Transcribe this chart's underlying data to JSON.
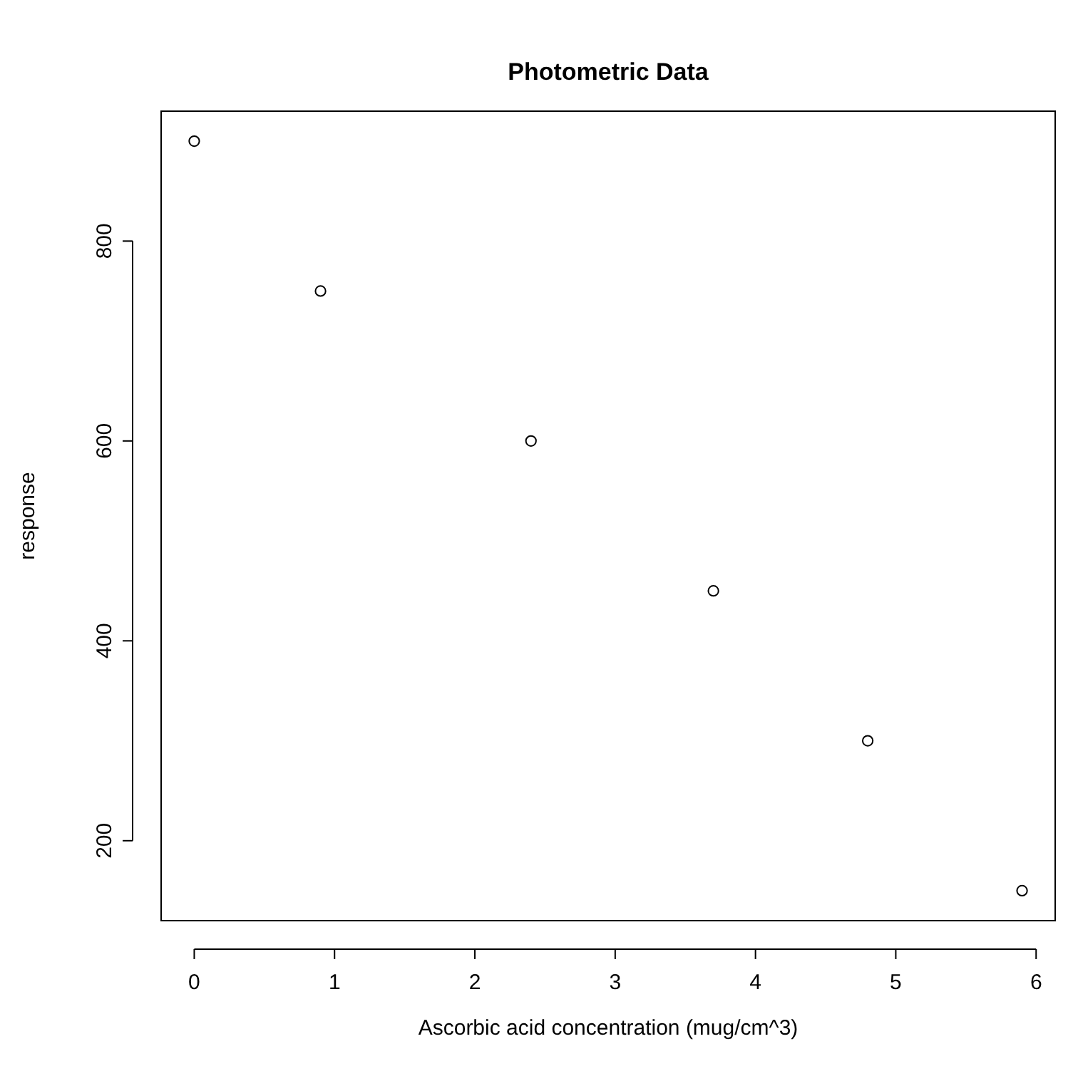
{
  "chart_data": {
    "type": "scatter",
    "title": "Photometric Data",
    "xlabel": "Ascorbic acid concentration (mug/cm^3)",
    "ylabel": "response",
    "x": [
      0,
      0.9,
      2.4,
      3.7,
      4.8,
      5.9
    ],
    "values": [
      900,
      750,
      600,
      450,
      300,
      150
    ],
    "color": "#000000",
    "marker": "circle",
    "grid": false,
    "xlim": [
      -0.236,
      6.136
    ],
    "xticks": [
      0,
      1,
      2,
      3,
      4,
      5,
      6
    ],
    "ylim": [
      120,
      930
    ],
    "yticks": [
      200,
      400,
      600,
      800
    ]
  }
}
